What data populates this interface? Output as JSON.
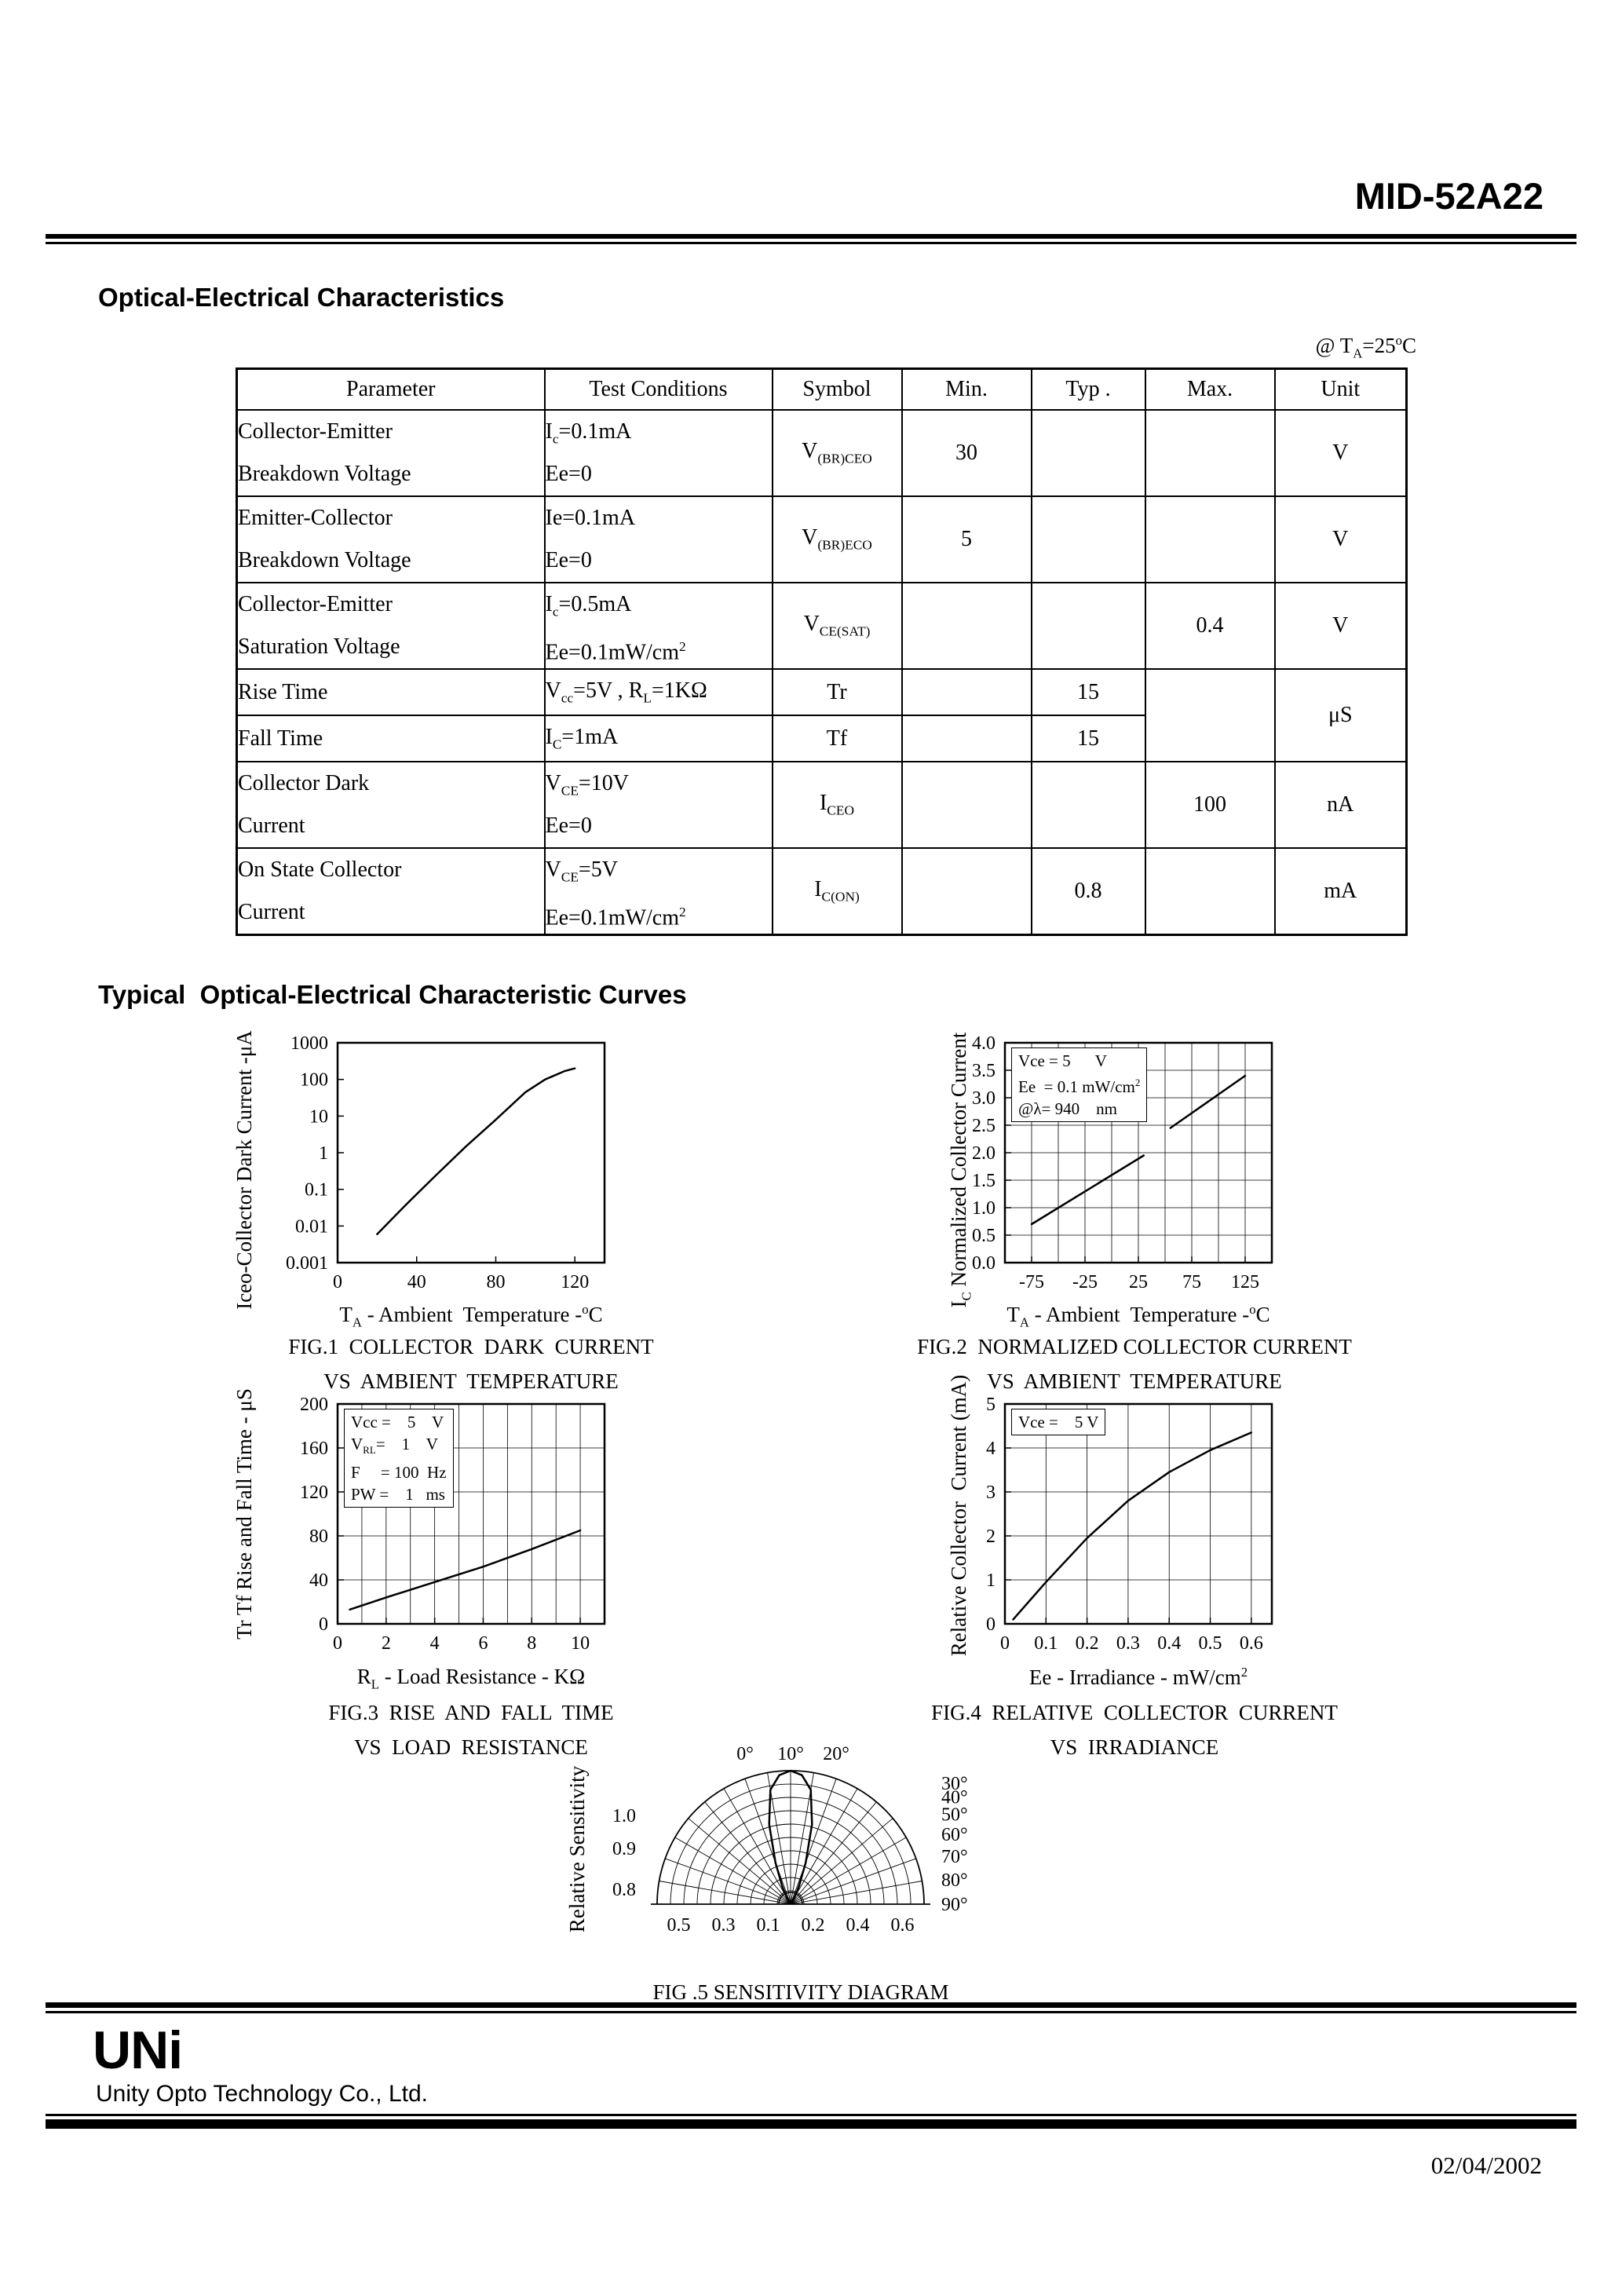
{
  "page": {
    "title": "MID-52A22",
    "section1": "Optical-Electrical Characteristics",
    "condition_note": "@ T~A~=25^o^C",
    "section2": "Typical  Optical-Electrical Characteristic Curves",
    "footer": {
      "logo": "UNi",
      "company": "Unity Opto Technology Co., Ltd.",
      "date": "02/04/2002"
    }
  },
  "table": {
    "header": [
      "Parameter",
      "Test Conditions",
      "Symbol",
      "Min.",
      "Typ .",
      "Max.",
      "Unit"
    ],
    "rows": [
      {
        "param": [
          "Collector-Emitter",
          "Breakdown Voltage"
        ],
        "cond": [
          "I~c~=0.1mA",
          "Ee=0"
        ],
        "symbol": "V~(BR)CEO~",
        "min": "30",
        "typ": "",
        "max": "",
        "unit": "V"
      },
      {
        "param": [
          "Emitter-Collector",
          "Breakdown Voltage"
        ],
        "cond": [
          "Ie=0.1mA",
          "Ee=0"
        ],
        "symbol": "V~(BR)ECO~",
        "min": "5",
        "typ": "",
        "max": "",
        "unit": "V"
      },
      {
        "param": [
          "Collector-Emitter",
          "Saturation Voltage"
        ],
        "cond": [
          "I~c~=0.5mA",
          "Ee=0.1mW/cm^2^"
        ],
        "symbol": "V~CE(SAT)~",
        "min": "",
        "typ": "",
        "max": "0.4",
        "unit": "V"
      },
      {
        "param": [
          "Rise Time"
        ],
        "cond": [
          "V~cc~=5V , R~L~=1KΩ"
        ],
        "symbol": "Tr",
        "min": "",
        "typ": "15",
        "max": "",
        "unit": "μS"
      },
      {
        "param": [
          "Fall Time"
        ],
        "cond": [
          "I~C~=1mA"
        ],
        "symbol": "Tf",
        "min": "",
        "typ": "15"
      },
      {
        "param": [
          "Collector Dark",
          "Current"
        ],
        "cond": [
          "V~CE~=10V",
          "Ee=0"
        ],
        "symbol": "I~CEO~",
        "min": "",
        "typ": "",
        "max": "100",
        "unit": "nA"
      },
      {
        "param": [
          "On State Collector",
          "Current"
        ],
        "cond": [
          "V~CE~=5V",
          "Ee=0.1mW/cm^2^"
        ],
        "symbol": "I~C(ON)~",
        "min": "",
        "typ": "0.8",
        "max": "",
        "unit": "mA"
      }
    ]
  },
  "chart_data": [
    {
      "id": "fig1",
      "type": "line",
      "y_label": "Iceo-Collector Dark Current -μA",
      "x_label": "T~A~ - Ambient  Temperature -^o^C",
      "captions": [
        "FIG.1  COLLECTOR  DARK  CURRENT",
        "VS  AMBIENT  TEMPERATURE"
      ],
      "y_scale": "log",
      "ylim": [
        0.001,
        1000
      ],
      "y_ticks": [
        1000,
        100,
        10,
        1,
        0.1,
        0.01,
        0.001
      ],
      "y_tick_labels": [
        "1000",
        "100",
        "10",
        "1",
        "0.1",
        "0.01",
        "0.001"
      ],
      "xlim": [
        0,
        135
      ],
      "x_ticks": [
        0,
        40,
        80,
        120
      ],
      "x_tick_labels": [
        "0",
        "40",
        "80",
        "120"
      ],
      "grid": null,
      "series": [
        {
          "name": "collector-dark-current",
          "points": [
            [
              20,
              0.006
            ],
            [
              35,
              0.04
            ],
            [
              50,
              0.25
            ],
            [
              65,
              1.5
            ],
            [
              80,
              8
            ],
            [
              95,
              45
            ],
            [
              105,
              100
            ],
            [
              115,
              170
            ],
            [
              120,
              200
            ]
          ]
        }
      ]
    },
    {
      "id": "fig2",
      "type": "line",
      "y_label": "I~C~ Normalized Collector Current",
      "x_label": "T~A~ - Ambient  Temperature -^o^C",
      "captions": [
        "FIG.2  NORMALIZED COLLECTOR CURRENT",
        "VS  AMBIENT  TEMPERATURE"
      ],
      "ylim": [
        0,
        4
      ],
      "y_ticks": [
        4,
        3.5,
        3,
        2.5,
        2,
        1.5,
        1,
        0.5,
        0
      ],
      "y_tick_labels": [
        "4.0",
        "3.5",
        "3.0",
        "2.5",
        "2.0",
        "1.5",
        "1.0",
        "0.5",
        "0.0"
      ],
      "xlim": [
        -100,
        150
      ],
      "x_ticks": [
        -75,
        -25,
        25,
        75,
        125
      ],
      "x_tick_labels": [
        "-75",
        "-25",
        "25",
        "75",
        "125"
      ],
      "grid": {
        "x_step": 25,
        "y_step": 0.5
      },
      "annotations": [
        "Vce = 5      V",
        "Ee  = 0.1 mW/cm^2^",
        "@λ= 940    nm"
      ],
      "series": [
        {
          "name": "normalized-collector-current-a",
          "points": [
            [
              -75,
              0.7
            ],
            [
              30,
              1.95
            ]
          ]
        },
        {
          "name": "normalized-collector-current-b",
          "points": [
            [
              55,
              2.45
            ],
            [
              125,
              3.4
            ]
          ]
        }
      ]
    },
    {
      "id": "fig3",
      "type": "line",
      "y_label": "Tr Tf Rise and Fall Time - μS",
      "x_label": "R~L~ - Load Resistance - KΩ",
      "captions": [
        "FIG.3  RISE  AND  FALL  TIME",
        "VS  LOAD  RESISTANCE"
      ],
      "ylim": [
        0,
        200
      ],
      "y_ticks": [
        200,
        160,
        120,
        80,
        40,
        0
      ],
      "y_tick_labels": [
        "200",
        "160",
        "120",
        "80",
        "40",
        "0"
      ],
      "xlim": [
        0,
        11
      ],
      "x_ticks": [
        0,
        2,
        4,
        6,
        8,
        10
      ],
      "x_tick_labels": [
        "0",
        "2",
        "4",
        "6",
        "8",
        "10"
      ],
      "grid": {
        "x_step": 1,
        "y_step": 40
      },
      "annotations": [
        "Vcc =    5    V",
        "V~RL~=    1    V",
        "F     = 100  Hz",
        "PW =    1   ms"
      ],
      "series": [
        {
          "name": "rise-fall-time",
          "points": [
            [
              0.5,
              13
            ],
            [
              2,
              24
            ],
            [
              4,
              38
            ],
            [
              6,
              52
            ],
            [
              8,
              68
            ],
            [
              10,
              85
            ]
          ]
        }
      ]
    },
    {
      "id": "fig4",
      "type": "line",
      "y_label": "Relative Collector  Current (mA)",
      "x_label": "Ee - Irradiance - mW/cm^2^",
      "captions": [
        "FIG.4  RELATIVE  COLLECTOR  CURRENT",
        "VS  IRRADIANCE"
      ],
      "ylim": [
        0,
        5
      ],
      "y_ticks": [
        5,
        4,
        3,
        2,
        1,
        0
      ],
      "y_tick_labels": [
        "5",
        "4",
        "3",
        "2",
        "1",
        "0"
      ],
      "xlim": [
        0,
        0.65
      ],
      "x_ticks": [
        0,
        0.1,
        0.2,
        0.3,
        0.4,
        0.5,
        0.6
      ],
      "x_tick_labels": [
        "0",
        "0.1",
        "0.2",
        "0.3",
        "0.4",
        "0.5",
        "0.6"
      ],
      "grid": {
        "x_step": 0.1,
        "y_step": 1
      },
      "annotations": [
        "Vce =    5 V"
      ],
      "series": [
        {
          "name": "relative-collector-current",
          "points": [
            [
              0.02,
              0.1
            ],
            [
              0.1,
              0.95
            ],
            [
              0.2,
              1.95
            ],
            [
              0.3,
              2.8
            ],
            [
              0.4,
              3.45
            ],
            [
              0.5,
              3.95
            ],
            [
              0.6,
              4.35
            ]
          ]
        }
      ]
    },
    {
      "id": "fig5",
      "type": "polar",
      "y_label": "Relative Sensitivity",
      "captions": [
        "FIG .5 SENSITIVITY DIAGRAM"
      ],
      "angle_labels_top": [
        "0°",
        "10°",
        "20°"
      ],
      "angle_labels_right": [
        "30°",
        "40°",
        "50°",
        "60°",
        "70°",
        "80°",
        "90°"
      ],
      "radius_labels_left": [
        "1.0",
        "0.9",
        "0.8"
      ],
      "baseline_labels": [
        "0.5",
        "0.3",
        "0.1",
        "0.2",
        "0.4",
        "0.6"
      ],
      "rings": [
        0.1,
        0.2,
        0.3,
        0.4,
        0.5,
        0.6,
        0.7,
        0.8,
        0.9,
        1.0
      ],
      "ray_step_deg": 10,
      "lobe": [
        [
          0,
          1.0
        ],
        [
          5,
          0.97
        ],
        [
          10,
          0.87
        ],
        [
          15,
          0.62
        ],
        [
          20,
          0.33
        ],
        [
          25,
          0.15
        ],
        [
          30,
          0.06
        ],
        [
          38,
          0.015
        ]
      ]
    }
  ]
}
